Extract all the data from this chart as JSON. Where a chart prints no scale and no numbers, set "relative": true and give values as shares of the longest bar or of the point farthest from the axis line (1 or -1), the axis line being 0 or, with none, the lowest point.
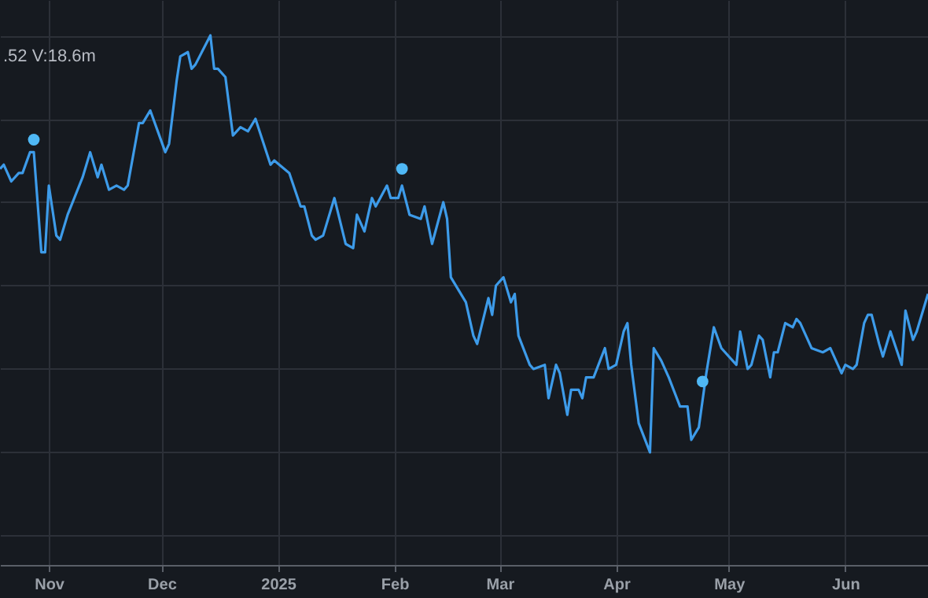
{
  "chart_data": {
    "type": "line",
    "relative": true,
    "grid": true,
    "tick_labels": "x",
    "line_style": "solid",
    "marker": "none",
    "annotations": [
      ".52  V:18.6m"
    ],
    "xlim": [
      "2024-10-19",
      "2025-06-23"
    ],
    "xticks": [
      {
        "value": "2024-11-01",
        "label": "Nov"
      },
      {
        "value": "2024-12-01",
        "label": "Dec"
      },
      {
        "value": "2025-01-01",
        "label": "2025"
      },
      {
        "value": "2025-02-01",
        "label": "Feb"
      },
      {
        "value": "2025-03-01",
        "label": "Mar"
      },
      {
        "value": "2025-04-01",
        "label": "Apr"
      },
      {
        "value": "2025-05-01",
        "label": "May"
      },
      {
        "value": "2025-06-01",
        "label": "Jun"
      }
    ],
    "series": [
      {
        "color": "#3d9be9",
        "x": [
          "2024-10-19",
          "2024-10-20",
          "2024-10-22",
          "2024-10-24",
          "2024-10-25",
          "2024-10-27",
          "2024-10-28",
          "2024-10-30",
          "2024-10-31",
          "2024-11-01",
          "2024-11-03",
          "2024-11-04",
          "2024-11-06",
          "2024-11-10",
          "2024-11-12",
          "2024-11-14",
          "2024-11-15",
          "2024-11-17",
          "2024-11-19",
          "2024-11-21",
          "2024-11-22",
          "2024-11-25",
          "2024-11-26",
          "2024-11-28",
          "2024-11-30",
          "2024-12-02",
          "2024-12-03",
          "2024-12-05",
          "2024-12-06",
          "2024-12-08",
          "2024-12-09",
          "2024-12-10",
          "2024-12-14",
          "2024-12-15",
          "2024-12-16",
          "2024-12-18",
          "2024-12-20",
          "2024-12-22",
          "2024-12-24",
          "2024-12-26",
          "2024-12-30",
          "2024-12-31",
          "2025-01-04",
          "2025-01-07",
          "2025-01-08",
          "2025-01-10",
          "2025-01-11",
          "2025-01-13",
          "2025-01-16",
          "2025-01-19",
          "2025-01-21",
          "2025-01-22",
          "2025-01-24",
          "2025-01-26",
          "2025-01-27",
          "2025-01-30",
          "2025-01-31",
          "2025-02-02",
          "2025-02-03",
          "2025-02-05",
          "2025-02-08",
          "2025-02-09",
          "2025-02-11",
          "2025-02-14",
          "2025-02-15",
          "2025-02-16",
          "2025-02-20",
          "2025-02-22",
          "2025-02-23",
          "2025-02-26",
          "2025-02-27",
          "2025-02-28",
          "2025-03-02",
          "2025-03-04",
          "2025-03-05",
          "2025-03-06",
          "2025-03-09",
          "2025-03-10",
          "2025-03-13",
          "2025-03-14",
          "2025-03-16",
          "2025-03-17",
          "2025-03-19",
          "2025-03-20",
          "2025-03-22",
          "2025-03-23",
          "2025-03-24",
          "2025-03-26",
          "2025-03-29",
          "2025-03-30",
          "2025-04-01",
          "2025-04-03",
          "2025-04-04",
          "2025-04-05",
          "2025-04-07",
          "2025-04-10",
          "2025-04-11",
          "2025-04-13",
          "2025-04-15",
          "2025-04-18",
          "2025-04-20",
          "2025-04-21",
          "2025-04-23",
          "2025-04-25",
          "2025-04-27",
          "2025-04-29",
          "2025-05-03",
          "2025-05-04",
          "2025-05-06",
          "2025-05-07",
          "2025-05-09",
          "2025-05-10",
          "2025-05-12",
          "2025-05-13",
          "2025-05-14",
          "2025-05-16",
          "2025-05-18",
          "2025-05-19",
          "2025-05-20",
          "2025-05-23",
          "2025-05-26",
          "2025-05-28",
          "2025-05-30",
          "2025-05-31",
          "2025-06-01",
          "2025-06-03",
          "2025-06-04",
          "2025-06-06",
          "2025-06-07",
          "2025-06-08",
          "2025-06-10",
          "2025-06-11",
          "2025-06-13",
          "2025-06-16",
          "2025-06-17",
          "2025-06-19",
          "2025-06-20",
          "2025-06-23"
        ],
        "values": [
          0.68,
          0.69,
          0.65,
          0.67,
          0.67,
          0.72,
          0.72,
          0.48,
          0.48,
          0.64,
          0.52,
          0.51,
          0.57,
          0.66,
          0.72,
          0.66,
          0.69,
          0.63,
          0.64,
          0.63,
          0.64,
          0.79,
          0.79,
          0.82,
          0.77,
          0.72,
          0.74,
          0.89,
          0.95,
          0.96,
          0.92,
          0.93,
          1,
          0.92,
          0.92,
          0.9,
          0.76,
          0.78,
          0.77,
          0.8,
          0.69,
          0.7,
          0.67,
          0.59,
          0.59,
          0.52,
          0.51,
          0.52,
          0.61,
          0.5,
          0.49,
          0.57,
          0.53,
          0.61,
          0.59,
          0.64,
          0.61,
          0.61,
          0.64,
          0.57,
          0.56,
          0.59,
          0.5,
          0.6,
          0.56,
          0.42,
          0.36,
          0.28,
          0.26,
          0.37,
          0.33,
          0.4,
          0.42,
          0.36,
          0.38,
          0.28,
          0.21,
          0.2,
          0.21,
          0.13,
          0.21,
          0.19,
          0.09,
          0.15,
          0.15,
          0.13,
          0.18,
          0.18,
          0.25,
          0.2,
          0.21,
          0.29,
          0.31,
          0.21,
          0.07,
          0,
          0.25,
          0.22,
          0.18,
          0.11,
          0.11,
          0.03,
          0.06,
          0.19,
          0.3,
          0.25,
          0.21,
          0.29,
          0.2,
          0.21,
          0.28,
          0.27,
          0.18,
          0.24,
          0.24,
          0.31,
          0.3,
          0.32,
          0.31,
          0.25,
          0.24,
          0.25,
          0.21,
          0.19,
          0.21,
          0.2,
          0.21,
          0.31,
          0.33,
          0.33,
          0.26,
          0.23,
          0.29,
          0.21,
          0.34,
          0.27,
          0.29,
          0.38
        ]
      },
      {
        "type": "scatter",
        "color": "#4fb8f5",
        "marker": "circle",
        "x": [
          "2024-10-28",
          "2025-02-03",
          "2025-04-24"
        ],
        "values": [
          0.75,
          0.68,
          0.17
        ]
      }
    ]
  }
}
